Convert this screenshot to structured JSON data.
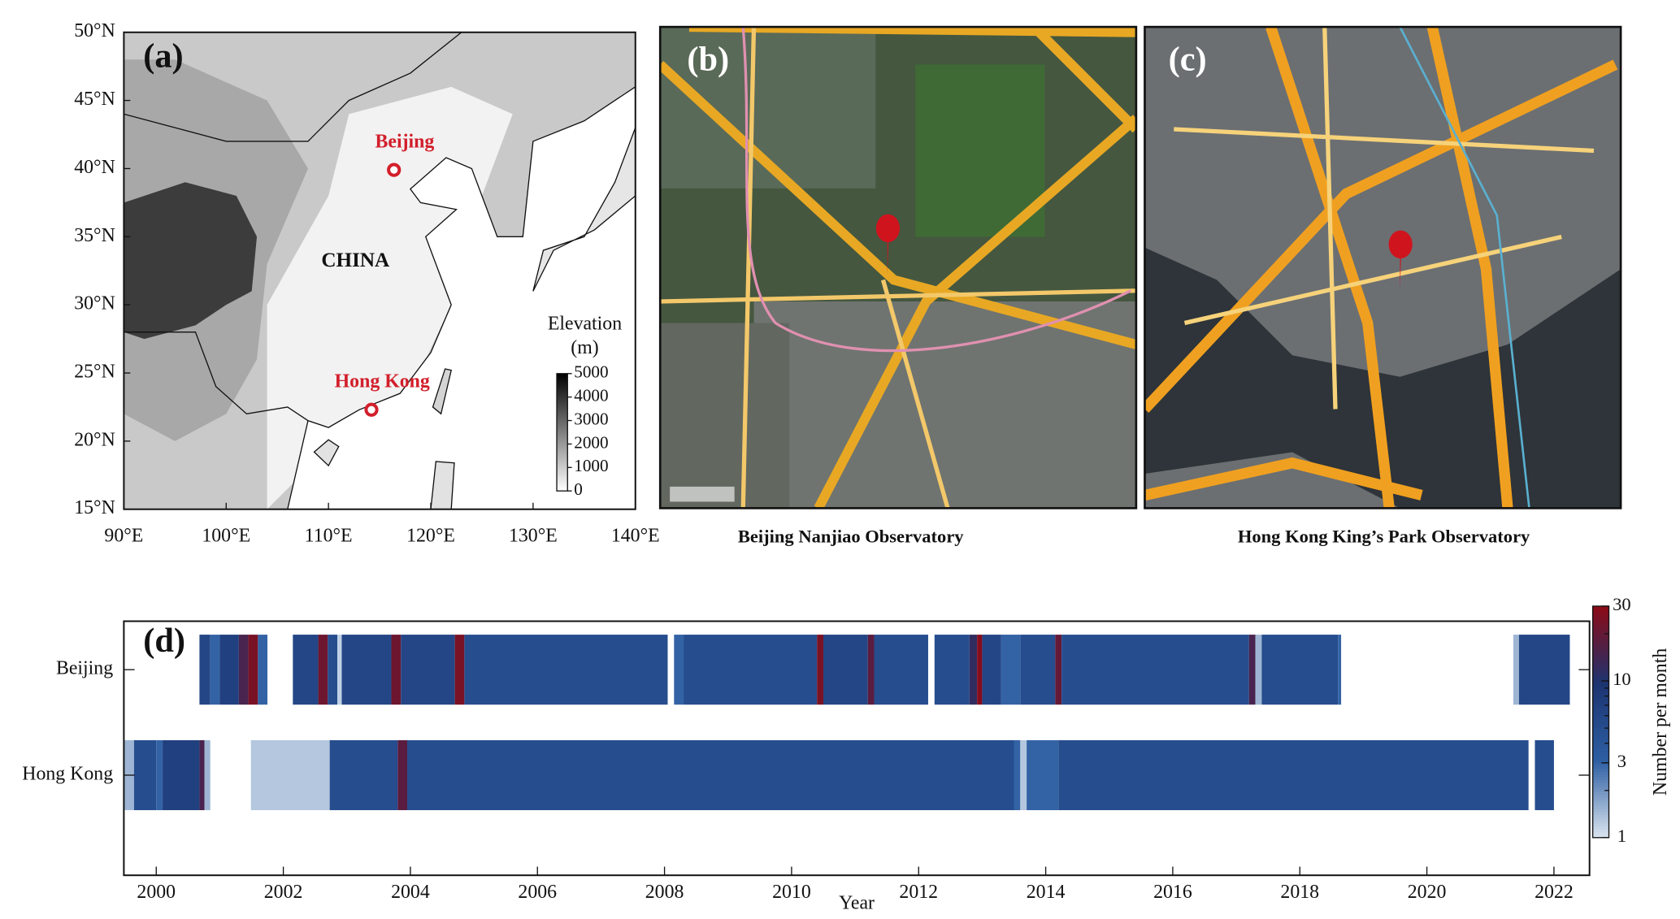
{
  "panel_a": {
    "label": "(a)",
    "xlim": [
      90,
      140
    ],
    "ylim": [
      15,
      50
    ],
    "xticks": [
      {
        "value": 90,
        "label": "90°E"
      },
      {
        "value": 100,
        "label": "100°E"
      },
      {
        "value": 110,
        "label": "110°E"
      },
      {
        "value": 120,
        "label": "120°E"
      },
      {
        "value": 130,
        "label": "130°E"
      },
      {
        "value": 140,
        "label": "140°E"
      }
    ],
    "yticks": [
      {
        "value": 15,
        "label": "15°N"
      },
      {
        "value": 20,
        "label": "20°N"
      },
      {
        "value": 25,
        "label": "25°N"
      },
      {
        "value": 30,
        "label": "30°N"
      },
      {
        "value": 35,
        "label": "35°N"
      },
      {
        "value": 40,
        "label": "40°N"
      },
      {
        "value": 45,
        "label": "45°N"
      },
      {
        "value": 50,
        "label": "50°N"
      }
    ],
    "country_label": "CHINA",
    "stations": [
      {
        "name": "Beijing",
        "lon": 116.4,
        "lat": 39.9
      },
      {
        "name": "Hong Kong",
        "lon": 114.2,
        "lat": 22.3
      }
    ],
    "colorbar": {
      "title": "Elevation",
      "unit": "(m)",
      "lim": [
        0,
        5000
      ],
      "ticks": [
        0,
        1000,
        2000,
        3000,
        4000,
        5000
      ],
      "colors": [
        "#ffffff",
        "#000000"
      ]
    }
  },
  "panel_b": {
    "label": "(b)",
    "caption": "Beijing Nanjiao Observatory"
  },
  "panel_c": {
    "label": "(c)",
    "caption": "Hong Kong King’s Park  Observatory"
  },
  "chart_data": {
    "type": "timeline-heatmap",
    "label": "(d)",
    "xlabel": "Year",
    "xlim": [
      1999.49,
      2022.56
    ],
    "xticks": [
      2000,
      2002,
      2004,
      2006,
      2008,
      2010,
      2012,
      2014,
      2016,
      2018,
      2020,
      2022
    ],
    "series": [
      {
        "name": "Beijing",
        "runs": [
          [
            2000.68,
            2000.85,
            6
          ],
          [
            2000.85,
            2001.0,
            3
          ],
          [
            2001.0,
            2001.3,
            7
          ],
          [
            2001.3,
            2001.45,
            15
          ],
          [
            2001.45,
            2001.6,
            25
          ],
          [
            2001.6,
            2001.75,
            3
          ],
          [
            2002.15,
            2002.55,
            6
          ],
          [
            2002.55,
            2002.7,
            22
          ],
          [
            2002.7,
            2002.85,
            5
          ],
          [
            2002.85,
            2002.92,
            1.2
          ],
          [
            2002.92,
            2003.7,
            6
          ],
          [
            2003.7,
            2003.85,
            22
          ],
          [
            2003.85,
            2004.7,
            6
          ],
          [
            2004.7,
            2004.85,
            25
          ],
          [
            2004.85,
            2008.05,
            5
          ],
          [
            2008.15,
            2008.3,
            3
          ],
          [
            2008.3,
            2010.4,
            5
          ],
          [
            2010.4,
            2010.5,
            25
          ],
          [
            2010.5,
            2011.2,
            6
          ],
          [
            2011.2,
            2011.3,
            18
          ],
          [
            2011.3,
            2012.15,
            5
          ],
          [
            2012.25,
            2012.8,
            5
          ],
          [
            2012.8,
            2012.92,
            12
          ],
          [
            2012.92,
            2013.0,
            28
          ],
          [
            2013.0,
            2013.3,
            6
          ],
          [
            2013.3,
            2013.6,
            3
          ],
          [
            2013.6,
            2014.15,
            5
          ],
          [
            2014.15,
            2014.25,
            20
          ],
          [
            2014.25,
            2017.2,
            5
          ],
          [
            2017.2,
            2017.3,
            15
          ],
          [
            2017.3,
            2017.4,
            1.5
          ],
          [
            2017.4,
            2018.6,
            5
          ],
          [
            2018.6,
            2018.65,
            3
          ],
          [
            2021.36,
            2021.45,
            1.5
          ],
          [
            2021.45,
            2022.25,
            6
          ]
        ]
      },
      {
        "name": "Hong Kong",
        "runs": [
          [
            1999.49,
            1999.65,
            1.5
          ],
          [
            1999.65,
            2000.0,
            5
          ],
          [
            2000.0,
            2000.1,
            3
          ],
          [
            2000.1,
            2000.68,
            7
          ],
          [
            2000.68,
            2000.76,
            15
          ],
          [
            2000.76,
            2000.85,
            1.5
          ],
          [
            2001.49,
            2002.73,
            1.3
          ],
          [
            2002.73,
            2003.8,
            5
          ],
          [
            2003.8,
            2003.95,
            18
          ],
          [
            2003.95,
            2013.5,
            5
          ],
          [
            2013.5,
            2013.6,
            3
          ],
          [
            2013.6,
            2013.7,
            1.3
          ],
          [
            2013.7,
            2014.2,
            3
          ],
          [
            2014.2,
            2021.6,
            5
          ],
          [
            2021.7,
            2022.0,
            5
          ]
        ]
      }
    ],
    "colorbar": {
      "label": "Number per month",
      "scale": "log",
      "lim": [
        1,
        30
      ],
      "ticks": [
        1,
        3,
        10,
        30
      ],
      "colors": [
        "#dce6f0",
        "#2e5fa3",
        "#1c3471",
        "#8c0b16"
      ]
    }
  }
}
